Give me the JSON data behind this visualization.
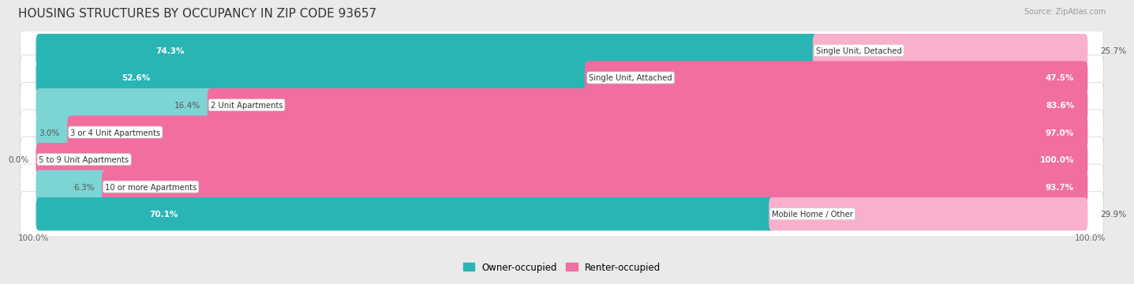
{
  "title": "HOUSING STRUCTURES BY OCCUPANCY IN ZIP CODE 93657",
  "source": "Source: ZipAtlas.com",
  "categories": [
    "Single Unit, Detached",
    "Single Unit, Attached",
    "2 Unit Apartments",
    "3 or 4 Unit Apartments",
    "5 to 9 Unit Apartments",
    "10 or more Apartments",
    "Mobile Home / Other"
  ],
  "owner_pct": [
    74.3,
    52.6,
    16.4,
    3.0,
    0.0,
    6.3,
    70.1
  ],
  "renter_pct": [
    25.7,
    47.5,
    83.6,
    97.0,
    100.0,
    93.7,
    29.9
  ],
  "owner_color_dark": "#2ab5b5",
  "owner_color_light": "#7dd4d4",
  "renter_color_dark": "#f06fa0",
  "renter_color_light": "#f9b0cc",
  "bg_color": "#eaeaea",
  "row_bg": "#f5f5f5",
  "title_fontsize": 11,
  "bar_height": 0.62,
  "x_left_label": "100.0%",
  "x_right_label": "100.0%",
  "owner_threshold": 30,
  "legend_owner": "Owner-occupied",
  "legend_renter": "Renter-occupied"
}
